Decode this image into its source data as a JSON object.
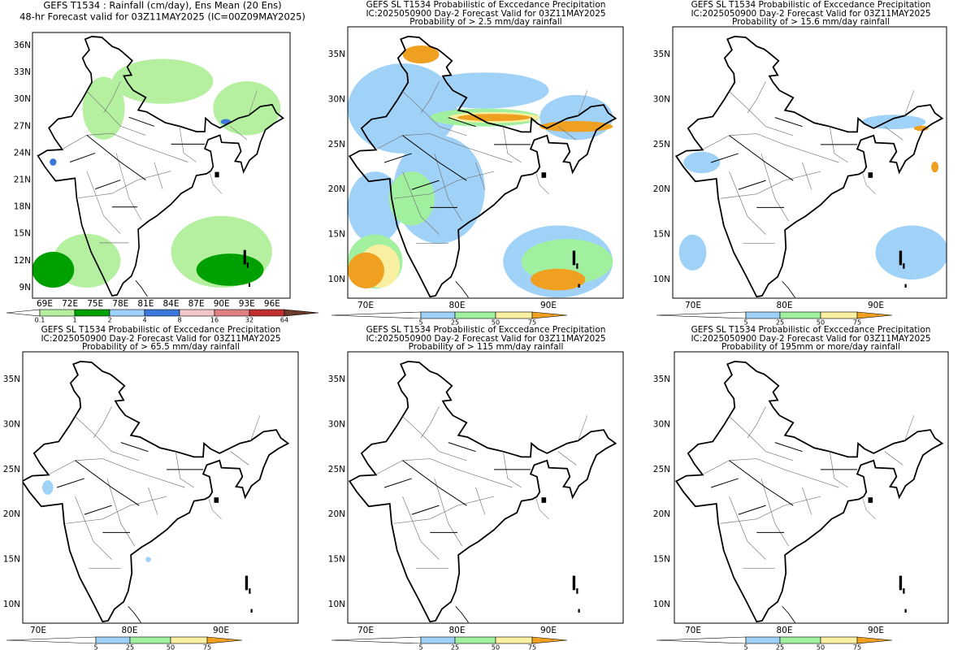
{
  "panels": [
    {
      "title": [
        "GEFS T1534 : Rainfall (cm/day), Ens Mean (20 Ens)",
        "48-hr Forecast valid for 03Z11MAY2025 (IC=00Z09MAY2025)"
      ],
      "lat_labels": [
        "36N",
        "33N",
        "30N",
        "27N",
        "24N",
        "21N",
        "18N",
        "15N",
        "12N",
        "9N"
      ],
      "lon_labels": [
        "69E",
        "72E",
        "75E",
        "78E",
        "81E",
        "84E",
        "87E",
        "90E",
        "93E",
        "96E"
      ],
      "colorbar": [
        "0.1",
        "1",
        "2",
        "4",
        "8",
        "16",
        "32",
        "64"
      ]
    },
    {
      "title": [
        "GEFS SL T1534 Probabilistic of Exccedance Precipitation",
        "IC:2025050900 Day-2 Forecast Valid for 03Z11MAY2025",
        "Probability of > 2.5 mm/day rainfall"
      ],
      "lat_labels": [
        "35N",
        "30N",
        "25N",
        "20N",
        "15N",
        "10N"
      ],
      "lon_labels": [
        "70E",
        "80E",
        "90E"
      ],
      "colorbar": [
        "5",
        "25",
        "50",
        "75"
      ]
    },
    {
      "title": [
        "GEFS SL T1534 Probabilistic of Exccedance Precipitation",
        "IC:2025050900 Day-2 Forecast Valid for 03Z11MAY2025",
        "Probability of > 15.6 mm/day rainfall"
      ],
      "lat_labels": [
        "35N",
        "30N",
        "25N",
        "20N",
        "15N",
        "10N"
      ],
      "lon_labels": [
        "70E",
        "80E",
        "90E"
      ],
      "colorbar": [
        "5",
        "25",
        "50",
        "75"
      ]
    },
    {
      "title": [
        "GEFS SL T1534 Probabilistic of Exccedance Precipitation",
        "IC:2025050900 Day-2 Forecast Valid for 03Z11MAY2025",
        "Probability of > 65.5 mm/day rainfall"
      ],
      "lat_labels": [
        "35N",
        "30N",
        "25N",
        "20N",
        "15N",
        "10N"
      ],
      "lon_labels": [
        "70E",
        "80E",
        "90E"
      ],
      "colorbar": [
        "5",
        "25",
        "50",
        "75"
      ]
    },
    {
      "title": [
        "GEFS SL T1534 Probabilistic of Exccedance Precipitation",
        "IC:2025050900 Day-2 Forecast Valid for 03Z11MAY2025",
        "Probability of > 115 mm/day rainfall"
      ],
      "lat_labels": [
        "35N",
        "30N",
        "25N",
        "20N",
        "15N",
        "10N"
      ],
      "lon_labels": [
        "70E",
        "80E",
        "90E"
      ],
      "colorbar": [
        "5",
        "25",
        "50",
        "75"
      ]
    },
    {
      "title": [
        "GEFS SL T1534 Probabilistic of Exccedance Precipitation",
        "IC:2025050900 Day-2 Forecast Valid for 03Z11MAY2025",
        "Probability of 195mm or more/day rainfall"
      ],
      "lat_labels": [
        "35N",
        "30N",
        "25N",
        "20N",
        "15N",
        "10N"
      ],
      "lon_labels": [
        "70E",
        "80E",
        "90E"
      ],
      "colorbar": [
        "5",
        "25",
        "50",
        "75"
      ]
    }
  ]
}
